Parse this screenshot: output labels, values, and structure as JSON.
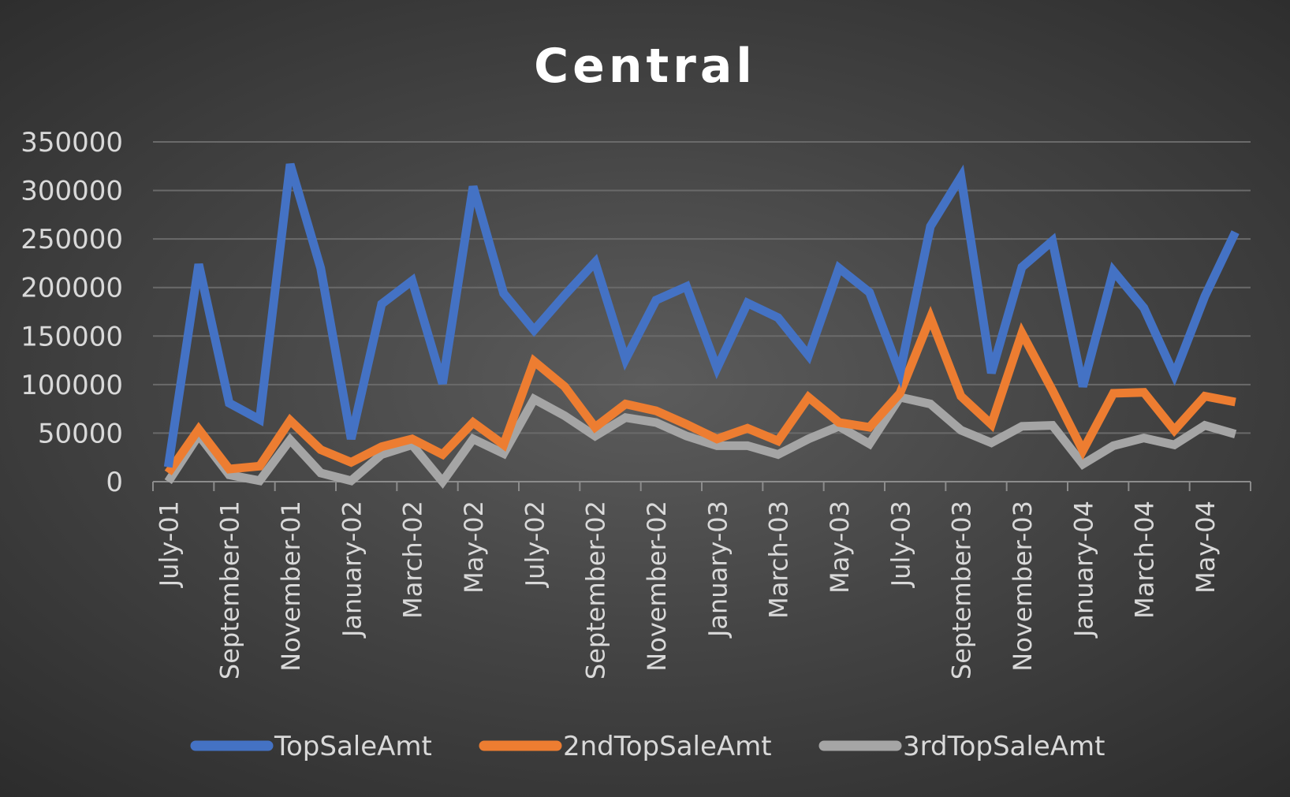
{
  "chart_data": {
    "type": "line",
    "title": "Central",
    "xlabel": "",
    "ylabel": "",
    "ylim": [
      0,
      350000
    ],
    "yticks": [
      0,
      50000,
      100000,
      150000,
      200000,
      250000,
      300000,
      350000
    ],
    "grid": true,
    "legend": "bottom",
    "x": [
      "July-01",
      "August-01",
      "September-01",
      "October-01",
      "November-01",
      "December-01",
      "January-02",
      "February-02",
      "March-02",
      "April-02",
      "May-02",
      "June-02",
      "July-02",
      "August-02",
      "September-02",
      "October-02",
      "November-02",
      "December-02",
      "January-03",
      "February-03",
      "March-03",
      "April-03",
      "May-03",
      "June-03",
      "July-03",
      "August-03",
      "September-03",
      "October-03",
      "November-03",
      "December-03",
      "January-04",
      "February-04",
      "March-04",
      "April-04",
      "May-04",
      "June-04"
    ],
    "x_tick_labels": [
      "July-01",
      "September-01",
      "November-01",
      "January-02",
      "March-02",
      "May-02",
      "July-02",
      "September-02",
      "November-02",
      "January-03",
      "March-03",
      "May-03",
      "July-03",
      "September-03",
      "November-03",
      "January-04",
      "March-04",
      "May-04"
    ],
    "series": [
      {
        "name": "TopSaleAmt",
        "color": "#4472c4",
        "values": [
          15000,
          224000,
          81000,
          64000,
          327000,
          220000,
          44000,
          183000,
          207000,
          101000,
          304000,
          194000,
          156000,
          192000,
          226000,
          126000,
          187000,
          201000,
          117000,
          184000,
          169000,
          130000,
          220000,
          195000,
          112000,
          263000,
          314000,
          112000,
          221000,
          248000,
          98000,
          217000,
          179000,
          110000,
          191000,
          257000
        ]
      },
      {
        "name": "2ndTopSaleAmt",
        "color": "#ed7d31",
        "values": [
          9000,
          54000,
          13000,
          16000,
          63000,
          33000,
          20000,
          36000,
          44000,
          28000,
          61000,
          38000,
          124000,
          98000,
          56000,
          80000,
          73000,
          59000,
          44000,
          55000,
          42000,
          87000,
          61000,
          56000,
          91000,
          169000,
          88000,
          59000,
          153000,
          94000,
          32000,
          91000,
          92000,
          53000,
          88000,
          82000
        ]
      },
      {
        "name": "3rdTopSaleAmt",
        "color": "#a5a5a5",
        "values": [
          0,
          48000,
          7000,
          1000,
          43000,
          9000,
          1000,
          28000,
          38000,
          0,
          44000,
          29000,
          85000,
          68000,
          47000,
          66000,
          61000,
          47000,
          37000,
          37000,
          28000,
          44000,
          57000,
          39000,
          87000,
          80000,
          53000,
          40000,
          57000,
          58000,
          18000,
          37000,
          45000,
          38000,
          58000,
          49000
        ]
      }
    ]
  }
}
